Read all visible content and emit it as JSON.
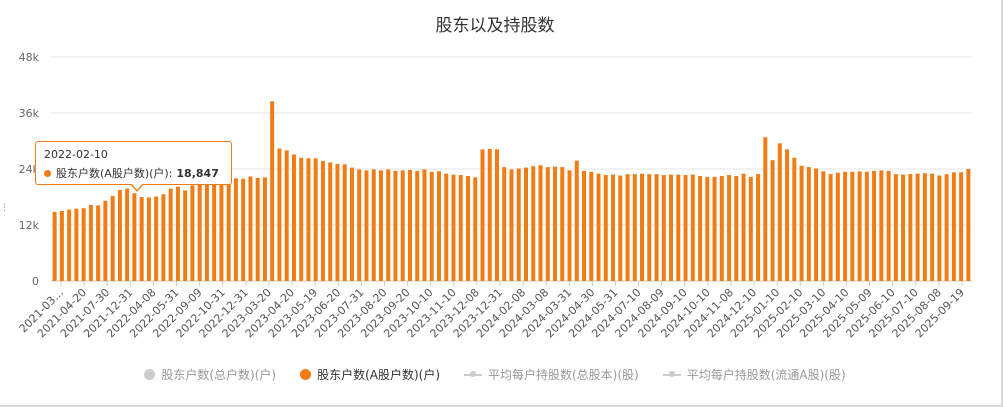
{
  "chart_data": {
    "type": "bar",
    "title": "股东以及持股数",
    "ylim": [
      0,
      48000
    ],
    "yticks": [
      0,
      12000,
      24000,
      36000,
      48000
    ],
    "ytick_labels": [
      "0",
      "12k",
      "24k",
      "36k",
      "48k"
    ],
    "xtick_labels": [
      "2021-03…",
      "2021-04-20",
      "2021-07-30",
      "2021-12-31",
      "2022-04-08",
      "2022-05-31",
      "2022-09-09",
      "2022-10-31",
      "2022-12-31",
      "2023-03-20",
      "2023-04-20",
      "2023-05-19",
      "2023-06-20",
      "2023-07-31",
      "2023-08-20",
      "2023-09-20",
      "2023-10-10",
      "2023-11-10",
      "2023-12-08",
      "2023-12-31",
      "2024-02-08",
      "2024-03-08",
      "2024-03-31",
      "2024-04-30",
      "2024-05-31",
      "2024-07-10",
      "2024-08-09",
      "2024-09-10",
      "2024-10-10",
      "2024-11-08",
      "2024-12-10",
      "2025-01-10",
      "2025-02-10",
      "2025-03-10",
      "2025-04-10",
      "2025-05-09",
      "2025-06-10",
      "2025-07-10",
      "2025-08-08",
      "2025-09-19"
    ],
    "series": [
      {
        "name": "股东户数(总户数)(户)",
        "color": "#cccccc",
        "visible": false,
        "values": []
      },
      {
        "name": "股东户数(A股户数)(户)",
        "color": "#f07c13",
        "visible": true,
        "values": [
          14800,
          15000,
          15300,
          15500,
          15600,
          16300,
          16200,
          17200,
          18200,
          19500,
          19800,
          18800,
          18000,
          17900,
          18100,
          18600,
          19800,
          20200,
          19400,
          20500,
          21400,
          21900,
          21400,
          20700,
          21800,
          22000,
          21900,
          22400,
          22100,
          22200,
          38500,
          28400,
          28000,
          27100,
          26400,
          26300,
          26300,
          25700,
          25400,
          25100,
          25000,
          24300,
          23900,
          23700,
          23900,
          23700,
          23900,
          23600,
          23700,
          23800,
          23600,
          23900,
          23400,
          23500,
          23000,
          22800,
          22700,
          22500,
          22200,
          28200,
          28300,
          28200,
          24400,
          23900,
          24100,
          24300,
          24600,
          24800,
          24400,
          24500,
          24400,
          23700,
          25800,
          23600,
          23400,
          23000,
          22700,
          22800,
          22600,
          22900,
          22900,
          23000,
          22900,
          22900,
          22700,
          22800,
          22800,
          22700,
          22800,
          22500,
          22300,
          22300,
          22500,
          22700,
          22500,
          23000,
          22300,
          22900,
          30800,
          25900,
          29500,
          28200,
          26400,
          24700,
          24400,
          24100,
          23500,
          22900,
          23200,
          23400,
          23400,
          23500,
          23400,
          23600,
          23700,
          23600,
          22900,
          22800,
          22900,
          23000,
          23100,
          23000,
          22600,
          22900,
          23300,
          23300,
          24000
        ]
      },
      {
        "name": "平均每户持股数(总股本)(股)",
        "color": "#cccccc",
        "visible": false,
        "values": []
      },
      {
        "name": "平均每户持股数(流通A股)(股)",
        "color": "#cccccc",
        "visible": false,
        "values": []
      }
    ],
    "legend_position": "bottom-center",
    "grid": true
  },
  "tooltip": {
    "date": "2022-02-10",
    "series_label": "股东户数(A股户数)(户):",
    "value": "18,847"
  }
}
